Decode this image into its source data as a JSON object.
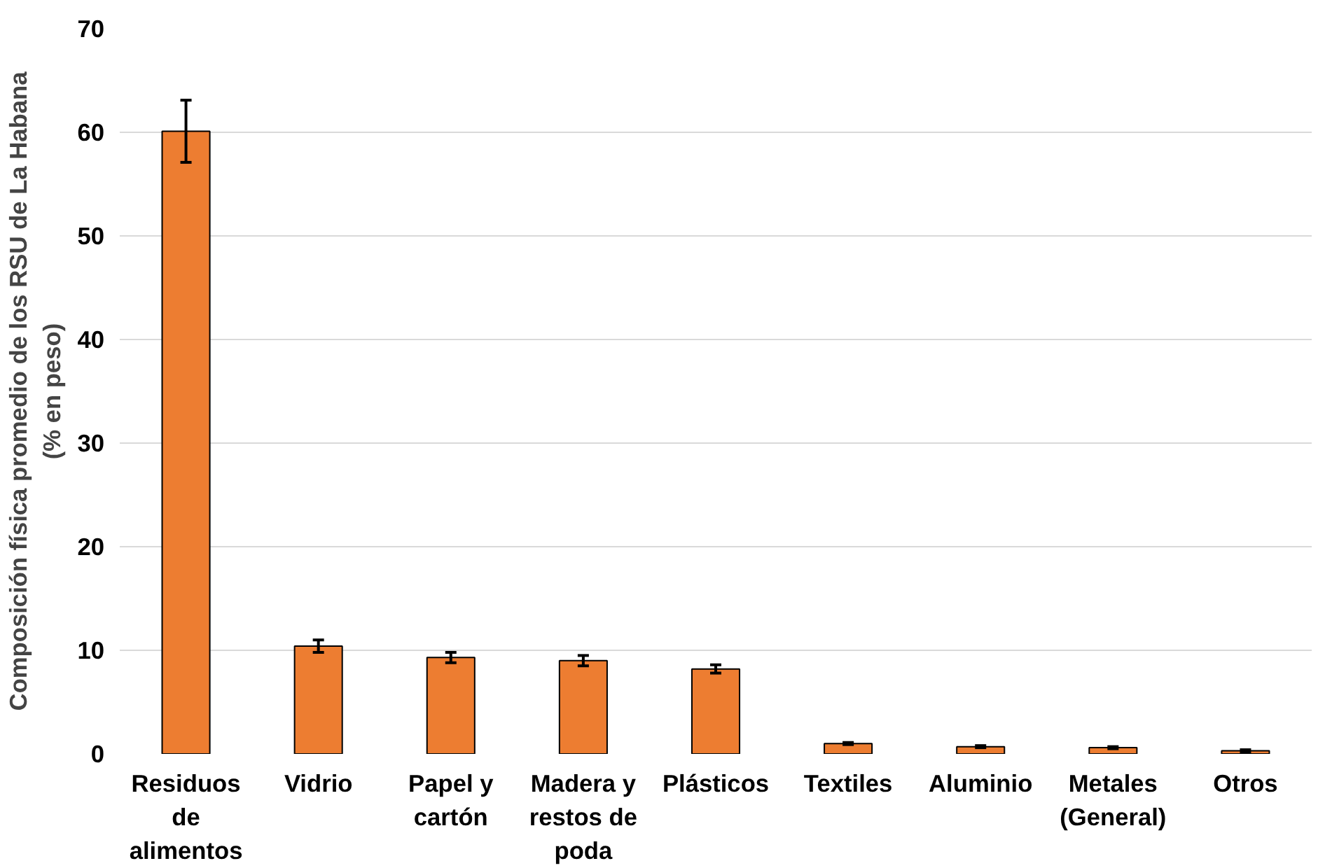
{
  "chart_data": {
    "type": "bar",
    "ylabel": "Composición física promedio de los RSU de La Habana (% en peso)",
    "categories": [
      "Residuos de alimentos",
      "Vidrio",
      "Papel y cartón",
      "Madera y restos de poda",
      "Plásticos",
      "Textiles",
      "Aluminio",
      "Metales (General)",
      "Otros"
    ],
    "values": [
      60.1,
      10.4,
      9.3,
      9.0,
      8.2,
      1.0,
      0.7,
      0.6,
      0.3
    ],
    "errors": [
      3.0,
      0.6,
      0.5,
      0.5,
      0.4,
      0.1,
      0.1,
      0.1,
      0.1
    ],
    "color": "#ed7d31",
    "ylim": [
      0,
      70
    ],
    "yticks": [
      0,
      10,
      20,
      30,
      40,
      50,
      60,
      70
    ],
    "grid": "y"
  }
}
